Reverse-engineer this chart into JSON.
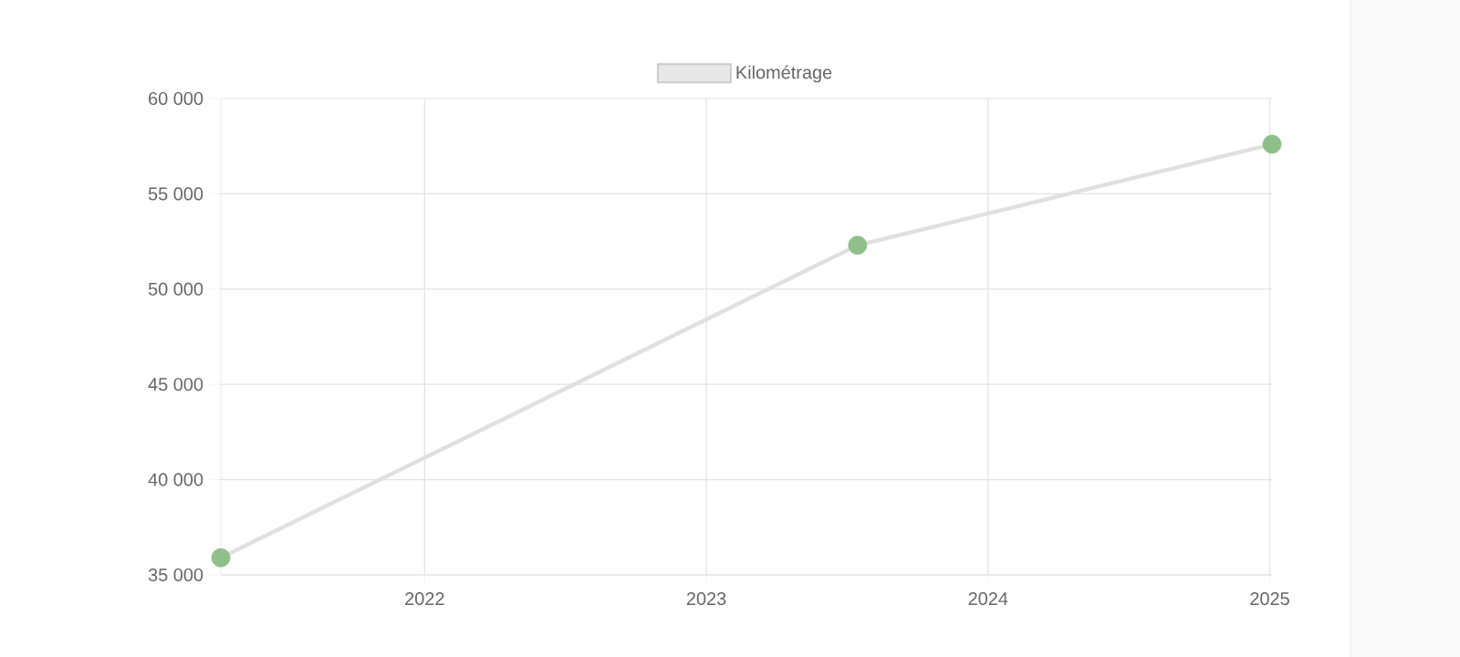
{
  "chart_data": {
    "type": "line",
    "x": [
      "2021-04-12",
      "2023-07-16",
      "2025-01-04"
    ],
    "series": [
      {
        "name": "Kilométrage",
        "color": "#e0e0e0",
        "values": [
          35900,
          52300,
          57600
        ],
        "colors": [
          "#8fbf8a",
          "#8fbf8a",
          "#8fbf8a"
        ]
      }
    ],
    "xlim": [
      "2021-04-12",
      "2025-01-04"
    ],
    "xticks": [
      "2022",
      "2023",
      "2024",
      "2025"
    ],
    "ylim": [
      35000,
      60000
    ],
    "yticks": [
      {
        "value": 35000,
        "label": "35 000"
      },
      {
        "value": 40000,
        "label": "40 000"
      },
      {
        "value": 45000,
        "label": "45 000"
      },
      {
        "value": 50000,
        "label": "50 000"
      },
      {
        "value": 55000,
        "label": "55 000"
      },
      {
        "value": 60000,
        "label": "60 000"
      }
    ],
    "grid": true,
    "legend": "top",
    "marker": "circle",
    "line_style": "solid"
  }
}
